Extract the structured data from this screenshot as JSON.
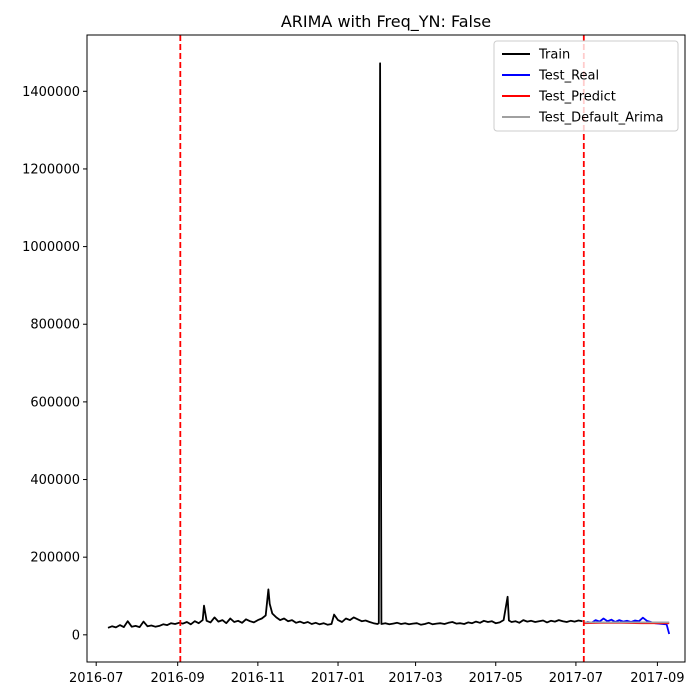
{
  "chart_data": {
    "type": "line",
    "title": "ARIMA with Freq_YN: False",
    "xlabel": "",
    "ylabel": "",
    "x_range": [
      "2016-06-24",
      "2017-09-22"
    ],
    "ylim": [
      -70000,
      1545000
    ],
    "x_ticks": [
      "2016-07",
      "2016-09",
      "2016-11",
      "2017-01",
      "2017-03",
      "2017-05",
      "2017-07",
      "2017-09"
    ],
    "x_tick_dates": [
      "2016-07-01",
      "2016-09-01",
      "2016-11-01",
      "2017-01-01",
      "2017-03-01",
      "2017-05-01",
      "2017-07-01",
      "2017-09-01"
    ],
    "y_ticks": [
      0,
      200000,
      400000,
      600000,
      800000,
      1000000,
      1200000,
      1400000
    ],
    "y_tick_labels": [
      "0",
      "200000",
      "400000",
      "600000",
      "800000",
      "1000000",
      "1200000",
      "1400000"
    ],
    "grid": false,
    "legend_position": "top-right",
    "vlines": [
      {
        "x": "2016-09-03",
        "color": "#ff0000",
        "style": "dashed"
      },
      {
        "x": "2017-07-07",
        "color": "#ff0000",
        "style": "dashed"
      }
    ],
    "series": [
      {
        "name": "Train",
        "color": "#000000",
        "x": [
          "2016-07-10",
          "2016-07-13",
          "2016-07-16",
          "2016-07-19",
          "2016-07-22",
          "2016-07-25",
          "2016-07-28",
          "2016-07-31",
          "2016-08-03",
          "2016-08-06",
          "2016-08-09",
          "2016-08-12",
          "2016-08-15",
          "2016-08-18",
          "2016-08-21",
          "2016-08-24",
          "2016-08-27",
          "2016-08-30",
          "2016-09-02",
          "2016-09-05",
          "2016-09-08",
          "2016-09-11",
          "2016-09-14",
          "2016-09-17",
          "2016-09-20",
          "2016-09-21",
          "2016-09-23",
          "2016-09-26",
          "2016-09-29",
          "2016-10-02",
          "2016-10-05",
          "2016-10-08",
          "2016-10-11",
          "2016-10-14",
          "2016-10-17",
          "2016-10-20",
          "2016-10-23",
          "2016-10-26",
          "2016-10-29",
          "2016-11-01",
          "2016-11-04",
          "2016-11-07",
          "2016-11-09",
          "2016-11-10",
          "2016-11-12",
          "2016-11-15",
          "2016-11-18",
          "2016-11-21",
          "2016-11-24",
          "2016-11-27",
          "2016-11-30",
          "2016-12-03",
          "2016-12-06",
          "2016-12-09",
          "2016-12-12",
          "2016-12-15",
          "2016-12-18",
          "2016-12-21",
          "2016-12-24",
          "2016-12-27",
          "2016-12-29",
          "2017-01-01",
          "2017-01-04",
          "2017-01-07",
          "2017-01-10",
          "2017-01-13",
          "2017-01-16",
          "2017-01-19",
          "2017-01-22",
          "2017-01-25",
          "2017-01-28",
          "2017-01-31",
          "2017-02-01",
          "2017-02-02",
          "2017-02-03",
          "2017-02-06",
          "2017-02-09",
          "2017-02-12",
          "2017-02-15",
          "2017-02-18",
          "2017-02-21",
          "2017-02-24",
          "2017-02-27",
          "2017-03-02",
          "2017-03-05",
          "2017-03-08",
          "2017-03-11",
          "2017-03-14",
          "2017-03-17",
          "2017-03-20",
          "2017-03-23",
          "2017-03-26",
          "2017-03-29",
          "2017-04-01",
          "2017-04-04",
          "2017-04-07",
          "2017-04-10",
          "2017-04-13",
          "2017-04-16",
          "2017-04-19",
          "2017-04-22",
          "2017-04-25",
          "2017-04-28",
          "2017-05-01",
          "2017-05-04",
          "2017-05-07",
          "2017-05-10",
          "2017-05-11",
          "2017-05-13",
          "2017-05-16",
          "2017-05-19",
          "2017-05-22",
          "2017-05-25",
          "2017-05-28",
          "2017-05-31",
          "2017-06-03",
          "2017-06-06",
          "2017-06-09",
          "2017-06-12",
          "2017-06-15",
          "2017-06-18",
          "2017-06-21",
          "2017-06-24",
          "2017-06-27",
          "2017-06-30",
          "2017-07-03",
          "2017-07-06"
        ],
        "values": [
          18000,
          22000,
          19000,
          25000,
          20000,
          35000,
          21000,
          23000,
          20000,
          34000,
          22000,
          24000,
          21000,
          23000,
          27000,
          25000,
          30000,
          28000,
          31000,
          29000,
          33000,
          27000,
          35000,
          30000,
          38000,
          75000,
          36000,
          32000,
          45000,
          34000,
          38000,
          30000,
          42000,
          33000,
          36000,
          31000,
          40000,
          35000,
          32000,
          38000,
          42000,
          50000,
          117000,
          80000,
          55000,
          45000,
          38000,
          42000,
          35000,
          38000,
          31000,
          34000,
          30000,
          33000,
          28000,
          31000,
          27000,
          30000,
          26000,
          28000,
          52000,
          38000,
          33000,
          42000,
          38000,
          45000,
          40000,
          35000,
          37000,
          33000,
          30000,
          28000,
          30000,
          1472000,
          28000,
          30000,
          27000,
          29000,
          31000,
          28000,
          30000,
          27000,
          29000,
          30000,
          26000,
          28000,
          31000,
          27000,
          29000,
          30000,
          28000,
          31000,
          33000,
          29000,
          30000,
          28000,
          32000,
          30000,
          34000,
          31000,
          36000,
          33000,
          35000,
          30000,
          32000,
          38000,
          98000,
          37000,
          33000,
          35000,
          31000,
          38000,
          34000,
          36000,
          33000,
          35000,
          37000,
          32000,
          36000,
          34000,
          38000,
          35000,
          33000,
          36000,
          34000,
          37000,
          35000
        ]
      },
      {
        "name": "Test_Real",
        "color": "#0000ff",
        "x": [
          "2017-07-07",
          "2017-07-10",
          "2017-07-13",
          "2017-07-16",
          "2017-07-19",
          "2017-07-22",
          "2017-07-25",
          "2017-07-28",
          "2017-07-31",
          "2017-08-03",
          "2017-08-06",
          "2017-08-09",
          "2017-08-12",
          "2017-08-15",
          "2017-08-18",
          "2017-08-21",
          "2017-08-24",
          "2017-08-27",
          "2017-08-30",
          "2017-09-02",
          "2017-09-05",
          "2017-09-08",
          "2017-09-10"
        ],
        "values": [
          30000,
          33000,
          31000,
          38000,
          34000,
          42000,
          35000,
          39000,
          33000,
          38000,
          34000,
          36000,
          33000,
          37000,
          35000,
          44000,
          36000,
          33000,
          30000,
          29000,
          28000,
          27000,
          2000
        ]
      },
      {
        "name": "Test_Predict",
        "color": "#ff0000",
        "x": [
          "2017-07-07",
          "2017-07-20",
          "2017-08-05",
          "2017-08-20",
          "2017-09-10"
        ],
        "values": [
          30000,
          31000,
          31000,
          30000,
          30000
        ]
      },
      {
        "name": "Test_Default_Arima",
        "color": "#a0a0a0",
        "x": [
          "2017-07-07",
          "2017-07-25",
          "2017-08-15",
          "2017-09-10"
        ],
        "values": [
          32000,
          32000,
          32000,
          32000
        ]
      }
    ]
  }
}
